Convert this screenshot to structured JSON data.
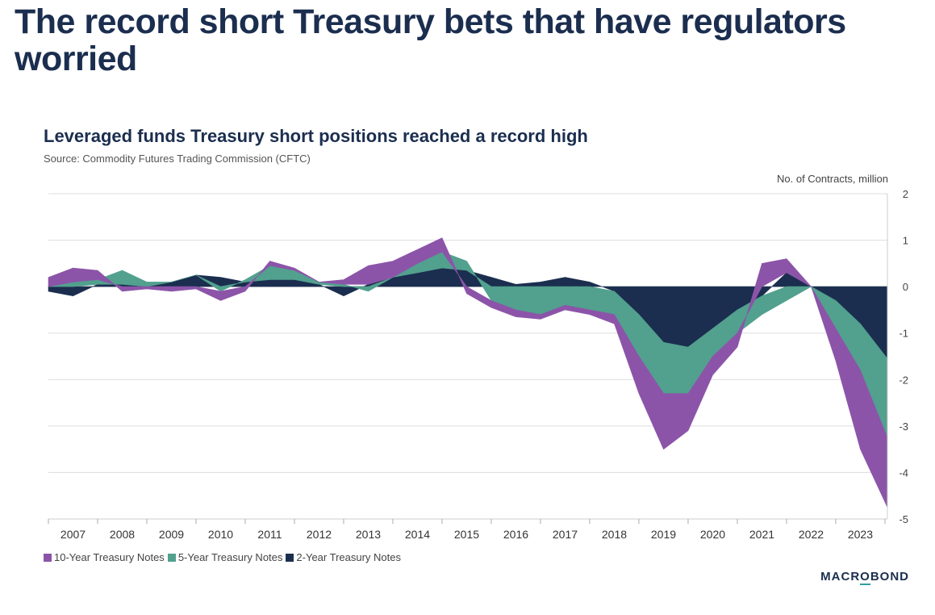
{
  "headline": "The record short Treasury bets that have regulators worried",
  "logo": {
    "prefix": "MACR",
    "o": "O",
    "suffix": "BOND"
  },
  "chart_data": {
    "type": "area",
    "title": "Leveraged funds Treasury short positions reached a record high",
    "source": "Source: Commodity Futures Trading Commission (CFTC)",
    "ylabel": "No. of Contracts, million",
    "ylim": [
      -5,
      2
    ],
    "yticks": [
      "2",
      "1",
      "0",
      "-1",
      "-2",
      "-3",
      "-4",
      "-5"
    ],
    "ytick_values": [
      2,
      1,
      0,
      -1,
      -2,
      -3,
      -4,
      -5
    ],
    "xlim": [
      2006.5,
      2023.55
    ],
    "x_tick_labels": [
      "2007",
      "2008",
      "2009",
      "2010",
      "2011",
      "2012",
      "2013",
      "2014",
      "2015",
      "2016",
      "2017",
      "2018",
      "2019",
      "2020",
      "2021",
      "2022",
      "2023"
    ],
    "legend_position": "bottom-left",
    "stacked": true,
    "x": [
      2006.5,
      2007.0,
      2007.5,
      2008.0,
      2008.5,
      2009.0,
      2009.5,
      2010.0,
      2010.5,
      2011.0,
      2011.5,
      2012.0,
      2012.5,
      2013.0,
      2013.5,
      2014.0,
      2014.5,
      2015.0,
      2015.5,
      2016.0,
      2016.5,
      2017.0,
      2017.5,
      2018.0,
      2018.5,
      2019.0,
      2019.5,
      2020.0,
      2020.5,
      2021.0,
      2021.5,
      2022.0,
      2022.5,
      2023.0,
      2023.55
    ],
    "series": [
      {
        "name": "2-Year Treasury Notes",
        "color": "#1b2e4f",
        "values": [
          -0.1,
          -0.2,
          0.05,
          0.05,
          0.0,
          0.1,
          0.25,
          0.2,
          0.1,
          0.15,
          0.15,
          0.05,
          -0.2,
          0.05,
          0.2,
          0.3,
          0.4,
          0.35,
          0.2,
          0.05,
          0.1,
          0.2,
          0.1,
          -0.1,
          -0.6,
          -1.2,
          -1.3,
          -0.9,
          -0.5,
          -0.2,
          0.3,
          0.0,
          -0.3,
          -0.8,
          -1.55
        ]
      },
      {
        "name": "5-Year Treasury Notes",
        "color": "#52a08e",
        "values": [
          0.0,
          0.1,
          0.1,
          0.3,
          0.1,
          0.0,
          0.0,
          -0.1,
          0.05,
          0.3,
          0.2,
          0.05,
          0.05,
          -0.1,
          0.0,
          0.2,
          0.35,
          0.2,
          -0.3,
          -0.5,
          -0.6,
          -0.4,
          -0.5,
          -0.5,
          -0.9,
          -1.1,
          -1.0,
          -0.6,
          -0.5,
          -0.4,
          -0.3,
          0.0,
          -0.6,
          -1.0,
          -1.7
        ]
      },
      {
        "name": "10-Year Treasury Notes",
        "color": "#8c54a9",
        "values": [
          0.2,
          0.3,
          0.2,
          -0.1,
          -0.05,
          -0.1,
          -0.05,
          -0.2,
          -0.1,
          0.1,
          0.05,
          0.0,
          0.1,
          0.4,
          0.35,
          0.3,
          0.3,
          -0.15,
          -0.15,
          -0.15,
          -0.1,
          -0.1,
          -0.1,
          -0.2,
          -0.8,
          -1.2,
          -0.8,
          -0.4,
          -0.3,
          0.5,
          0.3,
          0.0,
          -0.7,
          -1.7,
          -1.5
        ]
      }
    ]
  }
}
